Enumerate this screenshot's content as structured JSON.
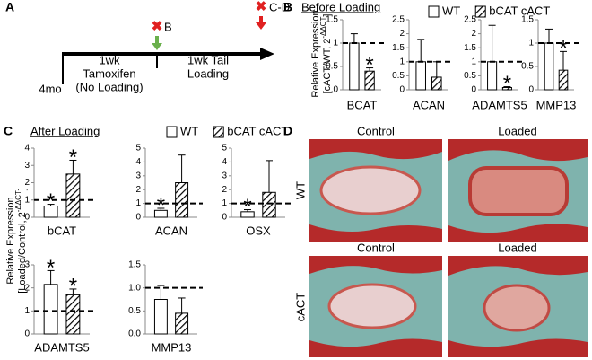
{
  "panel_labels": [
    "A",
    "B",
    "C",
    "D"
  ],
  "timeline": {
    "start": "4mo",
    "phase1": [
      "1wk",
      "Tamoxifen",
      "(No Loading)"
    ],
    "phase2": [
      "1wk Tail",
      "Loading"
    ],
    "events": [
      "B",
      "C-D"
    ]
  },
  "before_loading": {
    "title": "Before Loading",
    "y_label": [
      "Relative Expression",
      "[cACT/WT, 2",
      "-ΔΔCT",
      "]"
    ],
    "legend": [
      {
        "name": "WT",
        "hatch": false
      },
      {
        "name": "bCAT cACT",
        "hatch": true
      }
    ]
  },
  "after_loading": {
    "title": "After Loading",
    "y_label": [
      "Relative Expression",
      "[Loaded/Control, 2",
      "-ΔΔCT",
      "]"
    ],
    "legend": [
      {
        "name": "WT",
        "hatch": false
      },
      {
        "name": "bCAT cACT",
        "hatch": true
      }
    ]
  },
  "histology": {
    "columns": [
      "Control",
      "Loaded",
      "Control",
      "Loaded"
    ],
    "rows": [
      "WT",
      "cACT"
    ]
  },
  "chart_data": [
    {
      "type": "bar",
      "categories": [
        "BCAT"
      ],
      "ylim": [
        0,
        1.5
      ],
      "yticks": [
        0,
        0.5,
        1,
        1.5
      ],
      "reference_line": 1,
      "series": [
        {
          "values": [
            1.0
          ],
          "errors": [
            0.2
          ],
          "annotations": [
            null
          ]
        },
        {
          "values": [
            0.4
          ],
          "errors": [
            0.07
          ],
          "annotations": [
            "*"
          ]
        }
      ]
    },
    {
      "type": "bar",
      "categories": [
        "ACAN"
      ],
      "ylim": [
        0,
        2.5
      ],
      "yticks": [
        0,
        0.5,
        1,
        1.5,
        2,
        2.5
      ],
      "reference_line": 1,
      "series": [
        {
          "values": [
            1.0
          ],
          "errors": [
            0.8
          ],
          "annotations": [
            null
          ]
        },
        {
          "values": [
            0.45
          ],
          "errors": [
            0.55
          ],
          "annotations": [
            null
          ]
        }
      ]
    },
    {
      "type": "bar",
      "categories": [
        "ADAMTS5"
      ],
      "ylim": [
        0,
        2.5
      ],
      "yticks": [
        0,
        0.5,
        1,
        1.5,
        2,
        2.5
      ],
      "reference_line": 1,
      "series": [
        {
          "values": [
            1.0
          ],
          "errors": [
            1.3
          ],
          "annotations": [
            null
          ]
        },
        {
          "values": [
            0.08
          ],
          "errors": [
            0.03
          ],
          "annotations": [
            "*"
          ]
        }
      ]
    },
    {
      "type": "bar",
      "categories": [
        "MMP13"
      ],
      "ylim": [
        0,
        1.5
      ],
      "yticks": [
        0,
        0.5,
        1,
        1.5
      ],
      "reference_line": 1,
      "series": [
        {
          "values": [
            1.0
          ],
          "errors": [
            0.3
          ],
          "annotations": [
            null
          ]
        },
        {
          "values": [
            0.42
          ],
          "errors": [
            0.4
          ],
          "annotations": [
            "*"
          ]
        }
      ]
    },
    {
      "type": "bar",
      "categories": [
        "bCAT"
      ],
      "ylim": [
        0,
        4
      ],
      "yticks": [
        0,
        1,
        2,
        3,
        4
      ],
      "reference_line": 1,
      "series": [
        {
          "values": [
            0.65
          ],
          "errors": [
            0.1
          ],
          "annotations": [
            "*"
          ]
        },
        {
          "values": [
            2.5
          ],
          "errors": [
            0.8
          ],
          "annotations": [
            "*"
          ]
        }
      ]
    },
    {
      "type": "bar",
      "categories": [
        "ACAN"
      ],
      "ylim": [
        0,
        5
      ],
      "yticks": [
        0,
        1,
        2,
        3,
        4,
        5
      ],
      "reference_line": 1,
      "series": [
        {
          "values": [
            0.5
          ],
          "errors": [
            0.15
          ],
          "annotations": [
            "*"
          ]
        },
        {
          "values": [
            2.5
          ],
          "errors": [
            2.0
          ],
          "annotations": [
            null
          ]
        }
      ]
    },
    {
      "type": "bar",
      "categories": [
        "OSX"
      ],
      "ylim": [
        0,
        5
      ],
      "yticks": [
        0,
        1,
        2,
        3,
        4,
        5
      ],
      "reference_line": 1,
      "series": [
        {
          "values": [
            0.4
          ],
          "errors": [
            0.15
          ],
          "annotations": [
            "*"
          ]
        },
        {
          "values": [
            1.8
          ],
          "errors": [
            2.3
          ],
          "annotations": [
            null
          ]
        }
      ]
    },
    {
      "type": "bar",
      "categories": [
        "ADAMTS5"
      ],
      "ylim": [
        0,
        3
      ],
      "yticks": [
        0,
        1,
        2,
        3
      ],
      "reference_line": 1,
      "series": [
        {
          "values": [
            2.15
          ],
          "errors": [
            0.6
          ],
          "annotations": [
            "*"
          ]
        },
        {
          "values": [
            1.7
          ],
          "errors": [
            0.25
          ],
          "annotations": [
            "*"
          ]
        }
      ]
    },
    {
      "type": "bar",
      "categories": [
        "MMP13"
      ],
      "ylim": [
        0,
        1.5
      ],
      "yticks": [
        {
          "value": 0,
          "label": "0.0"
        },
        {
          "value": 0.5,
          "label": "0.5"
        },
        {
          "value": 1,
          "label": "1.0"
        },
        {
          "value": 1.5,
          "label": "1.5"
        }
      ],
      "reference_line": 1,
      "series": [
        {
          "values": [
            0.75
          ],
          "errors": [
            0.3
          ],
          "annotations": [
            null
          ]
        },
        {
          "values": [
            0.45
          ],
          "errors": [
            0.33
          ],
          "annotations": [
            null
          ]
        }
      ]
    }
  ]
}
